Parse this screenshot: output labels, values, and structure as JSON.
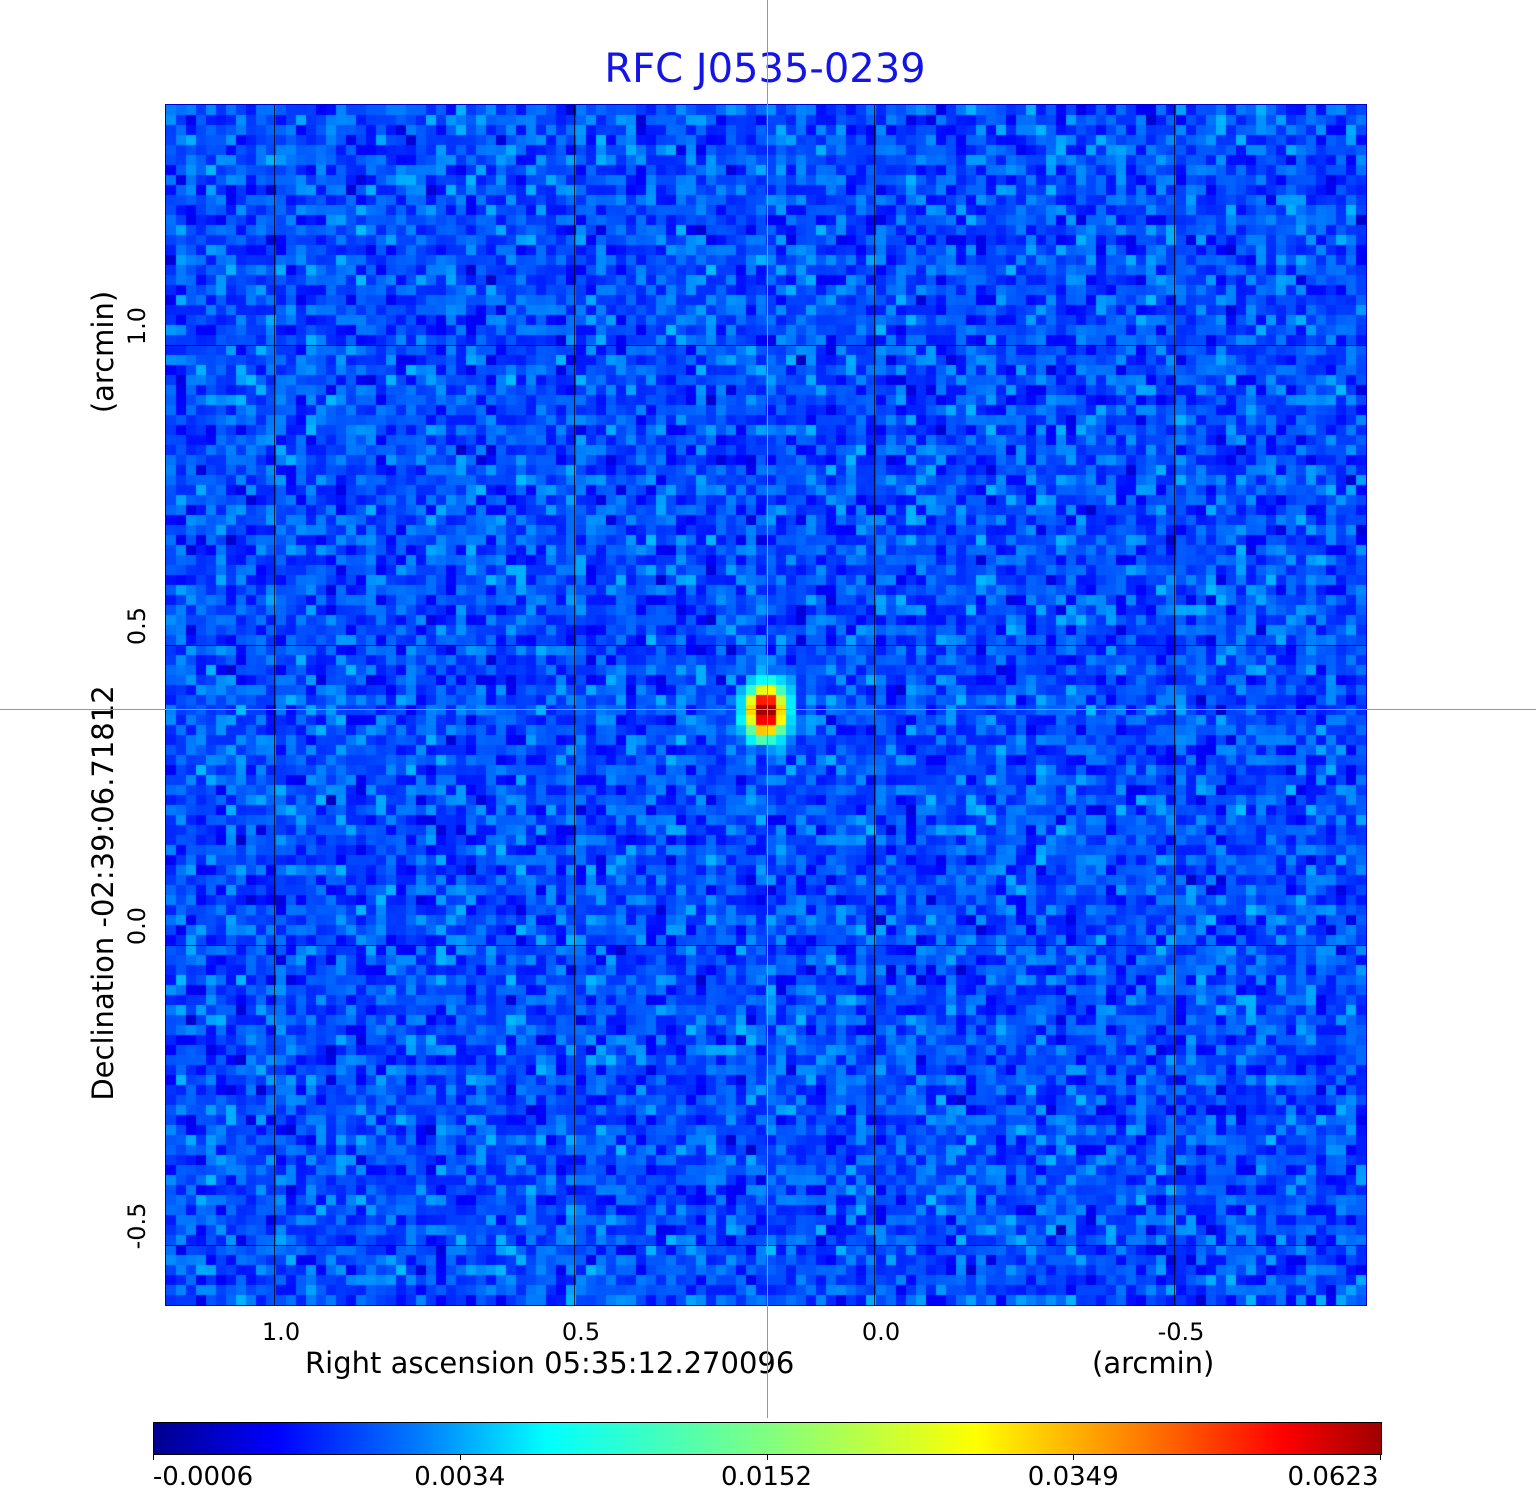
{
  "chart_data": {
    "type": "heatmap",
    "title": "RFC J0535-0239",
    "xlabel": "Right ascension  05:35:12.270096",
    "xunit": "(arcmin)",
    "ylabel": "Declination  -02:39:06.71812",
    "yunit": "(arcmin)",
    "xlim": [
      1.18,
      -0.82
    ],
    "ylim": [
      -0.6,
      1.4
    ],
    "x_ticks": [
      "1.0",
      "0.5",
      "0.0",
      "-0.5"
    ],
    "x_tick_values": [
      1.0,
      0.5,
      0.0,
      -0.5
    ],
    "y_ticks": [
      "1.0",
      "0.5",
      "0.0",
      "-0.5"
    ],
    "y_tick_values": [
      1.0,
      0.5,
      0.0,
      -0.5
    ],
    "grid": true,
    "colormap": "jet",
    "colorbar_ticks": [
      "-0.0006",
      "0.0034",
      "0.0152",
      "0.0349",
      "0.0623"
    ],
    "colorbar_values": [
      -0.0006,
      0.0034,
      0.0152,
      0.0349,
      0.0623
    ],
    "source": {
      "x_arcmin": 0.18,
      "y_arcmin": 0.39,
      "peak": 0.0623
    },
    "crosshair": {
      "x_arcmin": 0.18,
      "y_arcmin": 0.39,
      "color": "#33dd33"
    },
    "background_level": 0.0018,
    "noise_rms": 0.0008
  }
}
